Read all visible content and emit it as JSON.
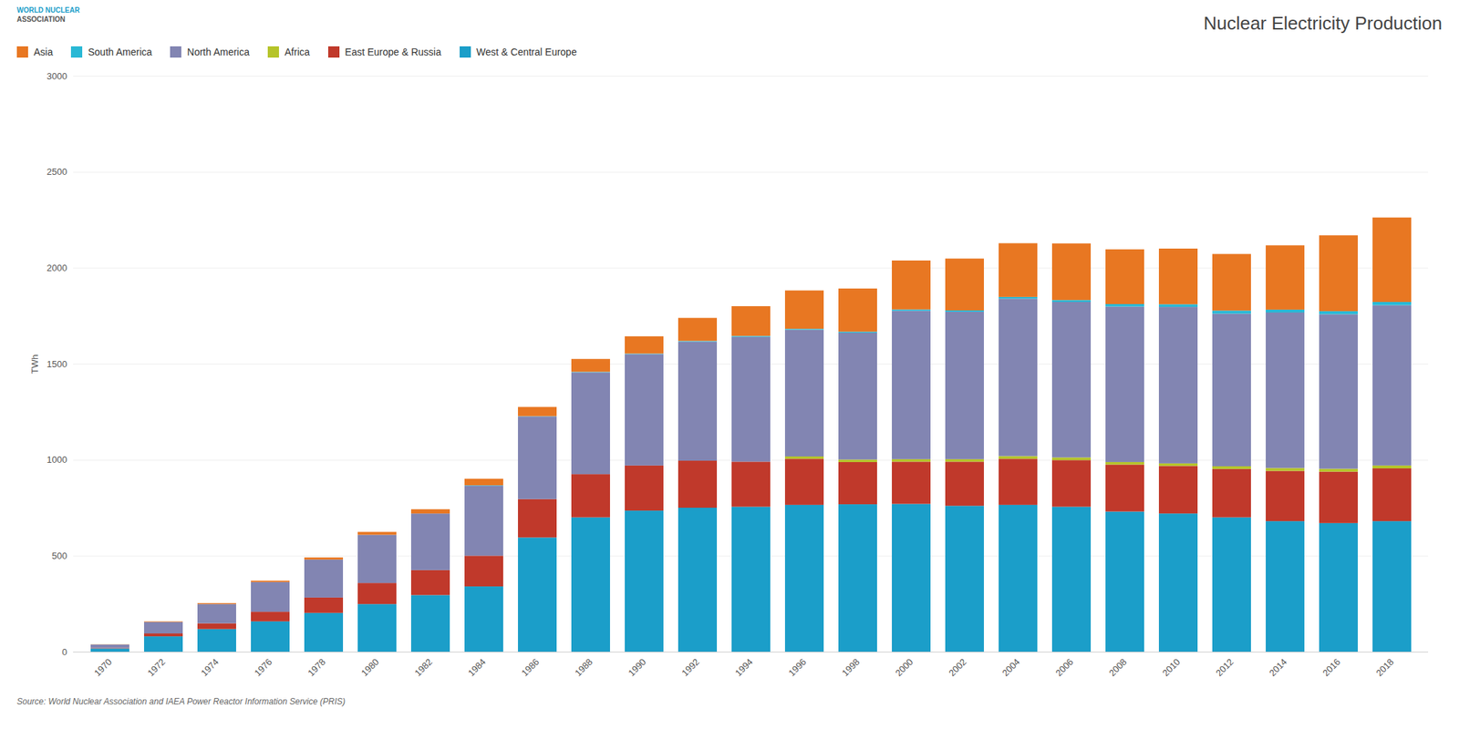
{
  "chart_data": {
    "type": "bar",
    "stacked": true,
    "title": "Nuclear Electricity Production",
    "ylabel": "TWh",
    "annotations": [
      "WORLD NUCLEAR",
      "ASSOCIATION",
      "Source: World Nuclear Association and IAEA Power Reactor Information Service (PRIS)"
    ],
    "categories": [
      "1970",
      "1972",
      "1974",
      "1976",
      "1978",
      "1980",
      "1982",
      "1984",
      "1986",
      "1988",
      "1990",
      "1992",
      "1994",
      "1996",
      "1998",
      "2000",
      "2002",
      "2004",
      "2006",
      "2008",
      "2010",
      "2012",
      "2014",
      "2016",
      "2018"
    ],
    "series": [
      {
        "name": "West & Central Europe",
        "color": "#1b9ec9",
        "values": [
          17,
          80,
          118,
          158,
          202,
          248,
          295,
          340,
          595,
          700,
          735,
          750,
          755,
          765,
          768,
          770,
          760,
          765,
          755,
          730,
          720,
          700,
          680,
          670,
          680
        ]
      },
      {
        "name": "East Europe & Russia",
        "color": "#c0392b",
        "values": [
          3,
          15,
          30,
          50,
          80,
          110,
          130,
          160,
          200,
          225,
          235,
          245,
          235,
          240,
          220,
          220,
          230,
          240,
          243,
          245,
          248,
          252,
          262,
          268,
          275
        ]
      },
      {
        "name": "Africa",
        "color": "#b5c429",
        "values": [
          0,
          0,
          0,
          0,
          0,
          0,
          0,
          0,
          0,
          0,
          0,
          0,
          0,
          12,
          13,
          13,
          13,
          14,
          14,
          13,
          13,
          14,
          15,
          15,
          15
        ]
      },
      {
        "name": "North America",
        "color": "#8285b2",
        "values": [
          17,
          60,
          100,
          155,
          198,
          251,
          295,
          365,
          430,
          530,
          580,
          620,
          650,
          660,
          660,
          773,
          768,
          820,
          810,
          810,
          815,
          795,
          810,
          805,
          835
        ]
      },
      {
        "name": "South America",
        "color": "#29b8d5",
        "values": [
          0,
          0,
          0,
          0,
          0,
          0,
          0,
          2,
          2,
          3,
          3,
          4,
          5,
          5,
          6,
          7,
          7,
          9,
          10,
          13,
          14,
          16,
          15,
          16,
          17
        ]
      },
      {
        "name": "Asia",
        "color": "#e87722",
        "values": [
          1,
          3,
          5,
          7,
          11,
          15,
          22,
          34,
          48,
          67,
          90,
          120,
          155,
          200,
          225,
          255,
          270,
          280,
          295,
          285,
          290,
          295,
          335,
          395,
          440
        ]
      }
    ],
    "ylim": [
      0,
      3000
    ],
    "yticks": [
      0,
      500,
      1000,
      1500,
      2000,
      2500,
      3000
    ],
    "grid": true,
    "legend": "upper left"
  }
}
